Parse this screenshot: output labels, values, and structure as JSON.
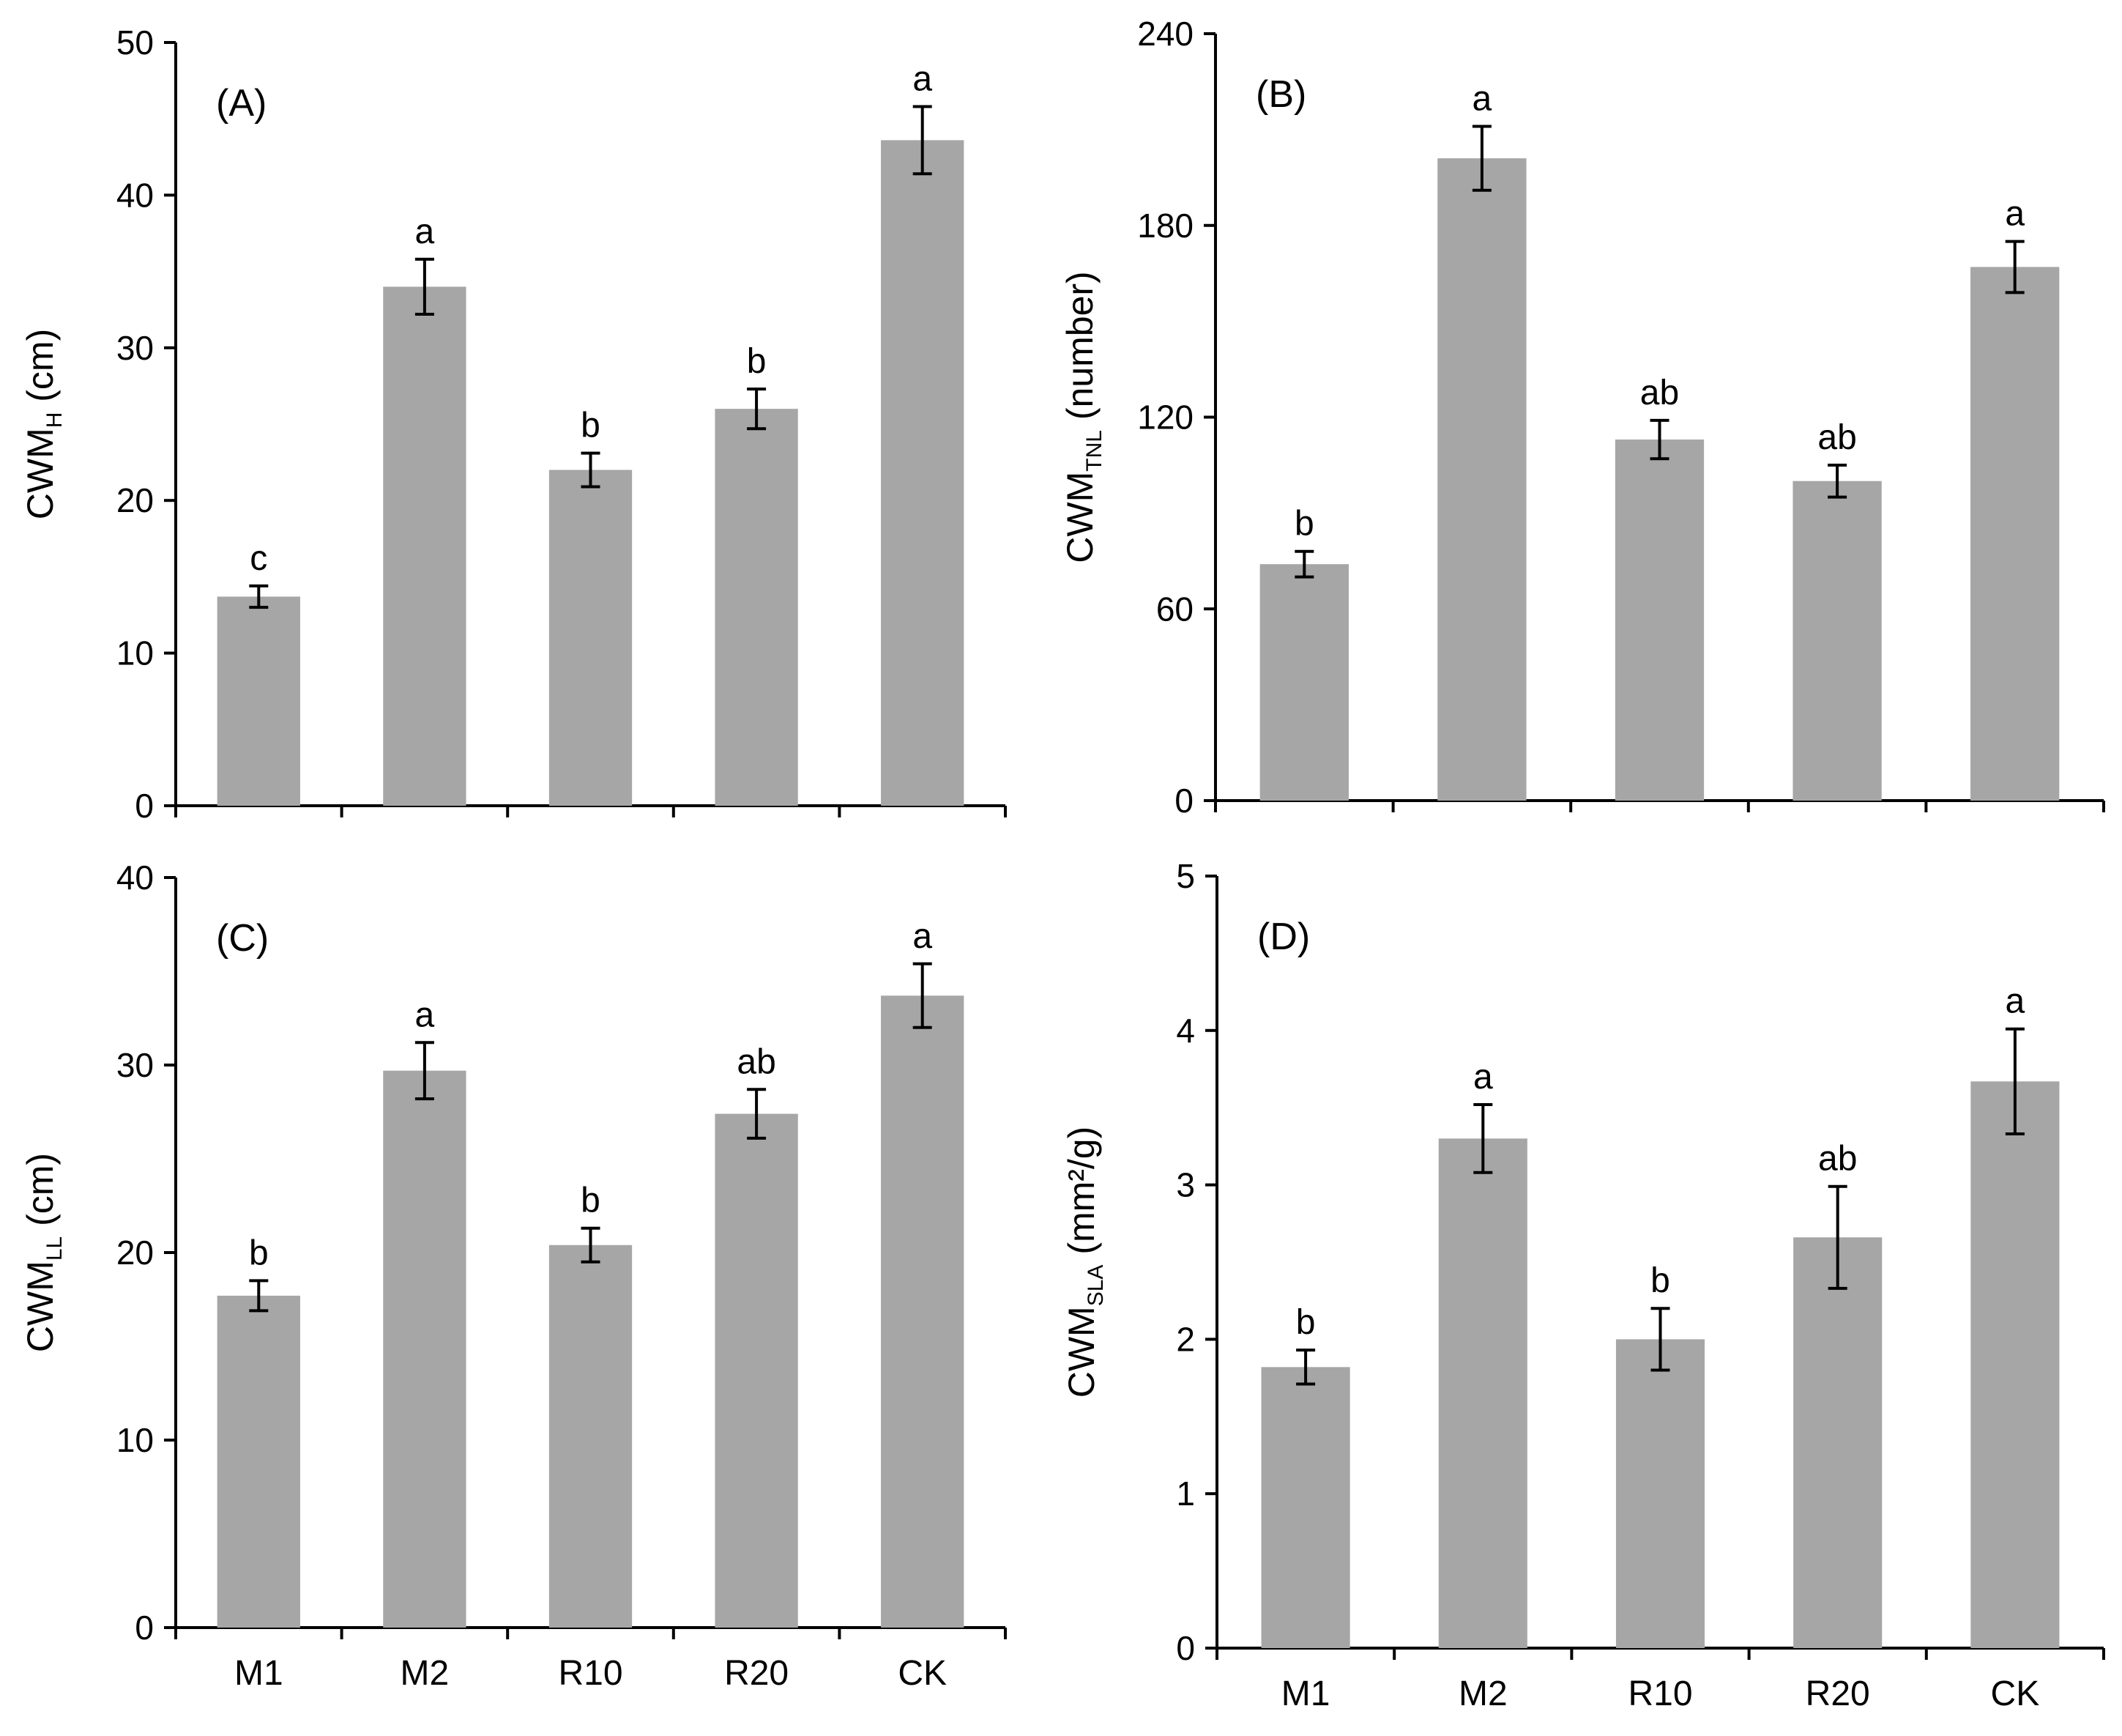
{
  "chart_data": [
    {
      "type": "bar",
      "panel_label": "(A)",
      "ylabel_main": "CWM",
      "ylabel_sub": "H",
      "ylabel_unit": " (cm)",
      "ylim": [
        0,
        50
      ],
      "yticks": [
        0,
        10,
        20,
        30,
        40,
        50
      ],
      "categories": [
        "M1",
        "M2",
        "R10",
        "R20",
        "CK"
      ],
      "show_categories": false,
      "values": [
        13.7,
        34.0,
        22.0,
        26.0,
        43.6
      ],
      "errors": [
        0.7,
        1.8,
        1.1,
        1.3,
        2.2
      ],
      "letters": [
        "c",
        "a",
        "b",
        "b",
        "a"
      ]
    },
    {
      "type": "bar",
      "panel_label": "(B)",
      "ylabel_main": "CWM",
      "ylabel_sub": "TNL",
      "ylabel_unit": " (number)",
      "ylim": [
        0,
        240
      ],
      "yticks": [
        0,
        60,
        120,
        180,
        240
      ],
      "categories": [
        "M1",
        "M2",
        "R10",
        "R20",
        "CK"
      ],
      "show_categories": false,
      "values": [
        74,
        201,
        113,
        100,
        167
      ],
      "errors": [
        4,
        10,
        6,
        5,
        8
      ],
      "letters": [
        "b",
        "a",
        "ab",
        "ab",
        "a"
      ]
    },
    {
      "type": "bar",
      "panel_label": "(C)",
      "ylabel_main": "CWM",
      "ylabel_sub": "LL",
      "ylabel_unit": " (cm)",
      "ylim": [
        0,
        40
      ],
      "yticks": [
        0,
        10,
        20,
        30,
        40
      ],
      "categories": [
        "M1",
        "M2",
        "R10",
        "R20",
        "CK"
      ],
      "show_categories": true,
      "values": [
        17.7,
        29.7,
        20.4,
        27.4,
        33.7
      ],
      "errors": [
        0.8,
        1.5,
        0.9,
        1.3,
        1.7
      ],
      "letters": [
        "b",
        "a",
        "b",
        "ab",
        "a"
      ]
    },
    {
      "type": "bar",
      "panel_label": "(D)",
      "ylabel_main": "CWM",
      "ylabel_sub": "SLA",
      "ylabel_unit": " (mm²/g)",
      "ylim": [
        0,
        5
      ],
      "yticks": [
        0,
        1,
        2,
        3,
        4,
        5
      ],
      "categories": [
        "M1",
        "M2",
        "R10",
        "R20",
        "CK"
      ],
      "show_categories": true,
      "values": [
        1.82,
        3.3,
        2.0,
        2.66,
        3.67
      ],
      "errors": [
        0.11,
        0.22,
        0.2,
        0.33,
        0.34
      ],
      "letters": [
        "b",
        "a",
        "b",
        "ab",
        "a"
      ]
    }
  ]
}
